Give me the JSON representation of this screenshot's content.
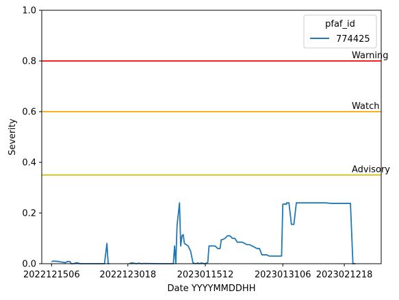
{
  "chart_data": {
    "type": "line",
    "xlabel": "Date YYYYMMDDHH",
    "ylabel": "Severity",
    "ylim": [
      0,
      1
    ],
    "yticks": [
      0.0,
      0.2,
      0.4,
      0.6,
      0.8,
      1.0
    ],
    "ytick_labels": [
      "0.0",
      "0.2",
      "0.4",
      "0.6",
      "0.8",
      "1.0"
    ],
    "xlim": [
      "2022121306",
      "2023022006"
    ],
    "xticks": [
      "2022121506",
      "2022123018",
      "2023011512",
      "2023013106",
      "2023021218"
    ],
    "grid": false,
    "legend": {
      "title": "pfaf_id",
      "placement": "top-right",
      "entries": [
        "774425"
      ]
    },
    "thresholds": [
      {
        "label": "Warning",
        "value": 0.8,
        "color": "#ff0000"
      },
      {
        "label": "Watch",
        "value": 0.6,
        "color": "#ffa500"
      },
      {
        "label": "Advisory",
        "value": 0.35,
        "color": "#ccbb00"
      }
    ],
    "series": [
      {
        "name": "774425",
        "color": "#1f77b4",
        "points": [
          [
            "2022121506",
            0.008
          ],
          [
            "2022121512",
            0.01
          ],
          [
            "2022121600",
            0.01
          ],
          [
            "2022121612",
            0.009
          ],
          [
            "2022121700",
            0.007
          ],
          [
            "2022121712",
            0.006
          ],
          [
            "2022121800",
            0.004
          ],
          [
            "2022121812",
            0.009
          ],
          [
            "2022121900",
            0.008
          ],
          [
            "2022121906",
            0.0
          ],
          [
            "2022121918",
            0.0
          ],
          [
            "2022122006",
            0.004
          ],
          [
            "2022122018",
            0.002
          ],
          [
            "2022122100",
            0.0
          ],
          [
            "2022122200",
            0.0
          ],
          [
            "2022122400",
            0.0
          ],
          [
            "2022122512",
            0.0
          ],
          [
            "2022122600",
            0.0
          ],
          [
            "2022122612",
            0.08
          ],
          [
            "2022122618",
            0.0
          ],
          [
            "2022122700",
            0.0
          ],
          [
            "2022122706",
            null
          ],
          [
            "2022123100",
            0.0
          ],
          [
            "2022123112",
            0.003
          ],
          [
            "2023010100",
            0.002
          ],
          [
            "2023010112",
            0.0
          ],
          [
            "2023010200",
            0.002
          ],
          [
            "2023010212",
            0.0
          ],
          [
            "2023010300",
            0.001
          ],
          [
            "2023010600",
            0.0
          ],
          [
            "2023010700",
            0.0
          ],
          [
            "2023010900",
            0.0
          ],
          [
            "2023010906",
            0.07
          ],
          [
            "2023010912",
            0.0
          ],
          [
            "2023010918",
            0.15
          ],
          [
            "2023011006",
            0.24
          ],
          [
            "2023011012",
            0.07
          ],
          [
            "2023011018",
            0.11
          ],
          [
            "2023011100",
            0.115
          ],
          [
            "2023011106",
            0.08
          ],
          [
            "2023011200",
            0.07
          ],
          [
            "2023011212",
            0.05
          ],
          [
            "2023011300",
            0.003
          ],
          [
            "2023011312",
            0.0
          ],
          [
            "2023011400",
            0.003
          ],
          [
            "2023011406",
            0.0
          ],
          [
            "2023011418",
            0.003
          ],
          [
            "2023011506",
            0.0
          ],
          [
            "2023011518",
            0.002
          ],
          [
            "2023011600",
            0.005
          ],
          [
            "2023011606",
            0.07
          ],
          [
            "2023011700",
            0.07
          ],
          [
            "2023011712",
            0.07
          ],
          [
            "2023011800",
            0.06
          ],
          [
            "2023011812",
            0.06
          ],
          [
            "2023011818",
            0.095
          ],
          [
            "2023011900",
            0.095
          ],
          [
            "2023011912",
            0.1
          ],
          [
            "2023012000",
            0.11
          ],
          [
            "2023012012",
            0.11
          ],
          [
            "2023012100",
            0.1
          ],
          [
            "2023012112",
            0.1
          ],
          [
            "2023012200",
            0.085
          ],
          [
            "2023012212",
            0.085
          ],
          [
            "2023012300",
            0.085
          ],
          [
            "2023012312",
            0.08
          ],
          [
            "2023012400",
            0.075
          ],
          [
            "2023012412",
            0.075
          ],
          [
            "2023012500",
            0.07
          ],
          [
            "2023012512",
            0.065
          ],
          [
            "2023012600",
            0.06
          ],
          [
            "2023012612",
            0.06
          ],
          [
            "2023012700",
            0.035
          ],
          [
            "2023012712",
            0.035
          ],
          [
            "2023012800",
            0.035
          ],
          [
            "2023012812",
            0.03
          ],
          [
            "2023012900",
            0.03
          ],
          [
            "2023012912",
            0.03
          ],
          [
            "2023013000",
            0.03
          ],
          [
            "2023013012",
            0.03
          ],
          [
            "2023013100",
            0.03
          ],
          [
            "2023013106",
            0.235
          ],
          [
            "2023013200",
            0.235
          ],
          [
            "2023020100",
            0.24
          ],
          [
            "2023020112",
            0.24
          ],
          [
            "2023020200",
            0.155
          ],
          [
            "2023020212",
            0.155
          ],
          [
            "2023020300",
            0.24
          ],
          [
            "2023020400",
            0.24
          ],
          [
            "2023020500",
            0.24
          ],
          [
            "2023020600",
            0.24
          ],
          [
            "2023020700",
            0.24
          ],
          [
            "2023020800",
            0.24
          ],
          [
            "2023020900",
            0.24
          ],
          [
            "2023021000",
            0.238
          ],
          [
            "2023021100",
            0.238
          ],
          [
            "2023021200",
            0.238
          ],
          [
            "2023021300",
            0.238
          ],
          [
            "2023021400",
            0.238
          ],
          [
            "2023021412",
            0.0
          ],
          [
            "2023021500",
            0.0
          ]
        ]
      }
    ]
  }
}
